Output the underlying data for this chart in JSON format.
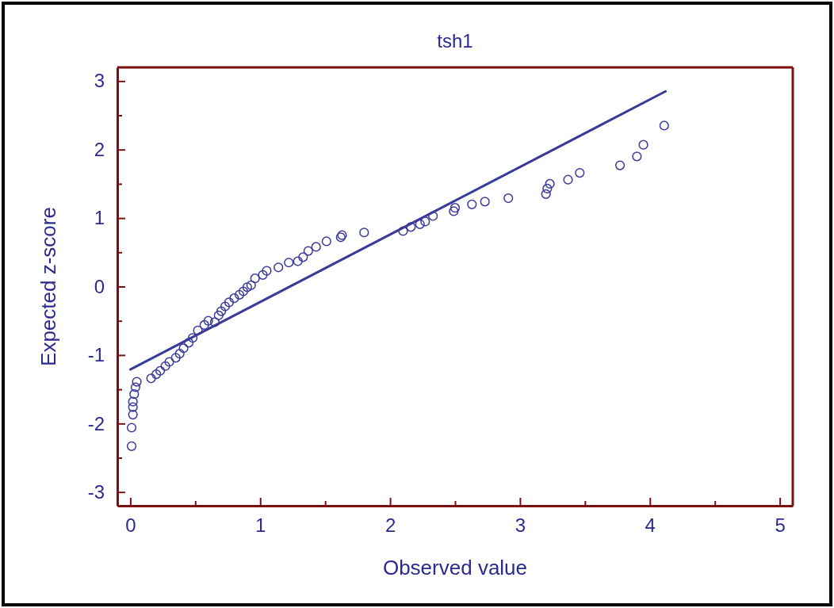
{
  "chart_data": {
    "type": "scatter",
    "title": "tsh1",
    "xlabel": "Observed value",
    "ylabel": "Expected z-score",
    "xlim": [
      -0.1,
      5.1
    ],
    "ylim": [
      -3.2,
      3.2
    ],
    "xticks": [
      0,
      {
        "value": 0.5,
        "label": null
      },
      1,
      {
        "value": 1.5,
        "label": null
      },
      2,
      {
        "value": 2.5,
        "label": null
      },
      3,
      {
        "value": 3.5,
        "label": null
      },
      4,
      {
        "value": 4.5,
        "label": null
      },
      5
    ],
    "yticks": [
      -3,
      {
        "value": -2.5,
        "label": null
      },
      -2,
      {
        "value": -1.5,
        "label": null
      },
      -1,
      {
        "value": -0.5,
        "label": null
      },
      0,
      {
        "value": 0.5,
        "label": null
      },
      1,
      {
        "value": 1.5,
        "label": null
      },
      2,
      {
        "value": 2.5,
        "label": null
      },
      3
    ],
    "grid": false,
    "marker": "circle",
    "series": [
      {
        "color": "#3a3a9a",
        "x": [
          0.01,
          0.01,
          0.02,
          0.02,
          0.02,
          0.03,
          0.04,
          0.05,
          0.16,
          0.2,
          0.23,
          0.27,
          0.3,
          0.35,
          0.38,
          0.41,
          0.45,
          0.48,
          0.52,
          0.57,
          0.6,
          0.65,
          0.68,
          0.7,
          0.73,
          0.76,
          0.8,
          0.84,
          0.87,
          0.9,
          0.93,
          0.96,
          1.02,
          1.05,
          1.14,
          1.22,
          1.29,
          1.33,
          1.37,
          1.43,
          1.51,
          1.62,
          1.63,
          1.8,
          2.1,
          2.16,
          2.23,
          2.27,
          2.33,
          2.49,
          2.5,
          2.63,
          2.73,
          2.91,
          3.2,
          3.21,
          3.23,
          3.37,
          3.46,
          3.77,
          3.9,
          3.95,
          4.11
        ],
        "values": [
          -2.33,
          -2.06,
          -1.87,
          -1.76,
          -1.68,
          -1.57,
          -1.47,
          -1.39,
          -1.34,
          -1.28,
          -1.23,
          -1.16,
          -1.1,
          -1.04,
          -0.98,
          -0.9,
          -0.82,
          -0.75,
          -0.64,
          -0.56,
          -0.5,
          -0.52,
          -0.42,
          -0.36,
          -0.29,
          -0.23,
          -0.17,
          -0.12,
          -0.07,
          -0.01,
          0.02,
          0.12,
          0.17,
          0.23,
          0.28,
          0.35,
          0.37,
          0.43,
          0.52,
          0.58,
          0.66,
          0.72,
          0.75,
          0.79,
          0.81,
          0.87,
          0.91,
          0.95,
          1.03,
          1.1,
          1.15,
          1.2,
          1.24,
          1.29,
          1.35,
          1.43,
          1.5,
          1.56,
          1.66,
          1.77,
          1.9,
          2.07,
          2.35
        ]
      },
      {
        "type": "line",
        "color": "#3a3a9a",
        "marker": "none",
        "line_style": "solid",
        "x": [
          0.0,
          4.12
        ],
        "values": [
          -1.21,
          2.85
        ]
      }
    ]
  }
}
